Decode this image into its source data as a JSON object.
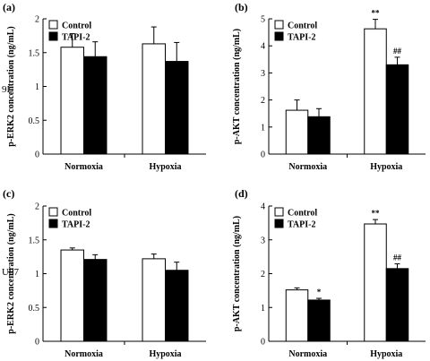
{
  "row_labels": [
    "9L",
    "U87"
  ],
  "legend_labels": [
    "Control",
    "TAPI-2"
  ],
  "colors": {
    "control": "#ffffff",
    "tapi2": "#000000",
    "axis": "#000000"
  },
  "chart_data": [
    {
      "panel": "(a)",
      "type": "bar",
      "categories": [
        "Normoxia",
        "Hypoxia"
      ],
      "ylabel": "p-ERK2 concentration (ng/mL)",
      "ylim": [
        0,
        2
      ],
      "yticks": [
        "0",
        "0.5",
        "1",
        "1.5",
        "2"
      ],
      "ytick_values": [
        0,
        0.5,
        1,
        1.5,
        2
      ],
      "series": [
        {
          "name": "Control",
          "values": [
            1.58,
            1.63
          ],
          "errors": [
            0.2,
            0.25
          ],
          "sig": [
            "",
            ""
          ]
        },
        {
          "name": "TAPI-2",
          "values": [
            1.44,
            1.37
          ],
          "errors": [
            0.22,
            0.28
          ],
          "sig": [
            "",
            ""
          ]
        }
      ]
    },
    {
      "panel": "(b)",
      "type": "bar",
      "categories": [
        "Normoxia",
        "Hypoxia"
      ],
      "ylabel": "p-AKT concentration (ng/mL)",
      "ylim": [
        0,
        5
      ],
      "yticks": [
        "0",
        "1",
        "2",
        "3",
        "4",
        "5"
      ],
      "ytick_values": [
        0,
        1,
        2,
        3,
        4,
        5
      ],
      "series": [
        {
          "name": "Control",
          "values": [
            1.62,
            4.63
          ],
          "errors": [
            0.38,
            0.35
          ],
          "sig": [
            "",
            "**"
          ]
        },
        {
          "name": "TAPI-2",
          "values": [
            1.38,
            3.3
          ],
          "errors": [
            0.3,
            0.28
          ],
          "sig": [
            "",
            "##"
          ]
        }
      ]
    },
    {
      "panel": "(c)",
      "type": "bar",
      "categories": [
        "Normoxia",
        "Hypoxia"
      ],
      "ylabel": "p-ERK2 concentration (ng/mL)",
      "ylim": [
        0,
        2
      ],
      "yticks": [
        "0",
        "0.5",
        "1",
        "1.5",
        "2"
      ],
      "ytick_values": [
        0,
        0.5,
        1,
        1.5,
        2
      ],
      "series": [
        {
          "name": "Control",
          "values": [
            1.35,
            1.22
          ],
          "errors": [
            0.03,
            0.07
          ],
          "sig": [
            "",
            ""
          ]
        },
        {
          "name": "TAPI-2",
          "values": [
            1.21,
            1.05
          ],
          "errors": [
            0.07,
            0.12
          ],
          "sig": [
            "",
            ""
          ]
        }
      ]
    },
    {
      "panel": "(d)",
      "type": "bar",
      "categories": [
        "Normoxia",
        "Hypoxia"
      ],
      "ylabel": "p-AKT concentration (ng/mL)",
      "ylim": [
        0,
        4
      ],
      "yticks": [
        "0",
        "1",
        "2",
        "3",
        "4"
      ],
      "ytick_values": [
        0,
        1,
        2,
        3,
        4
      ],
      "series": [
        {
          "name": "Control",
          "values": [
            1.52,
            3.47
          ],
          "errors": [
            0.06,
            0.13
          ],
          "sig": [
            "",
            "**"
          ]
        },
        {
          "name": "TAPI-2",
          "values": [
            1.22,
            2.15
          ],
          "errors": [
            0.05,
            0.14
          ],
          "sig": [
            "*",
            "##"
          ]
        }
      ]
    }
  ]
}
